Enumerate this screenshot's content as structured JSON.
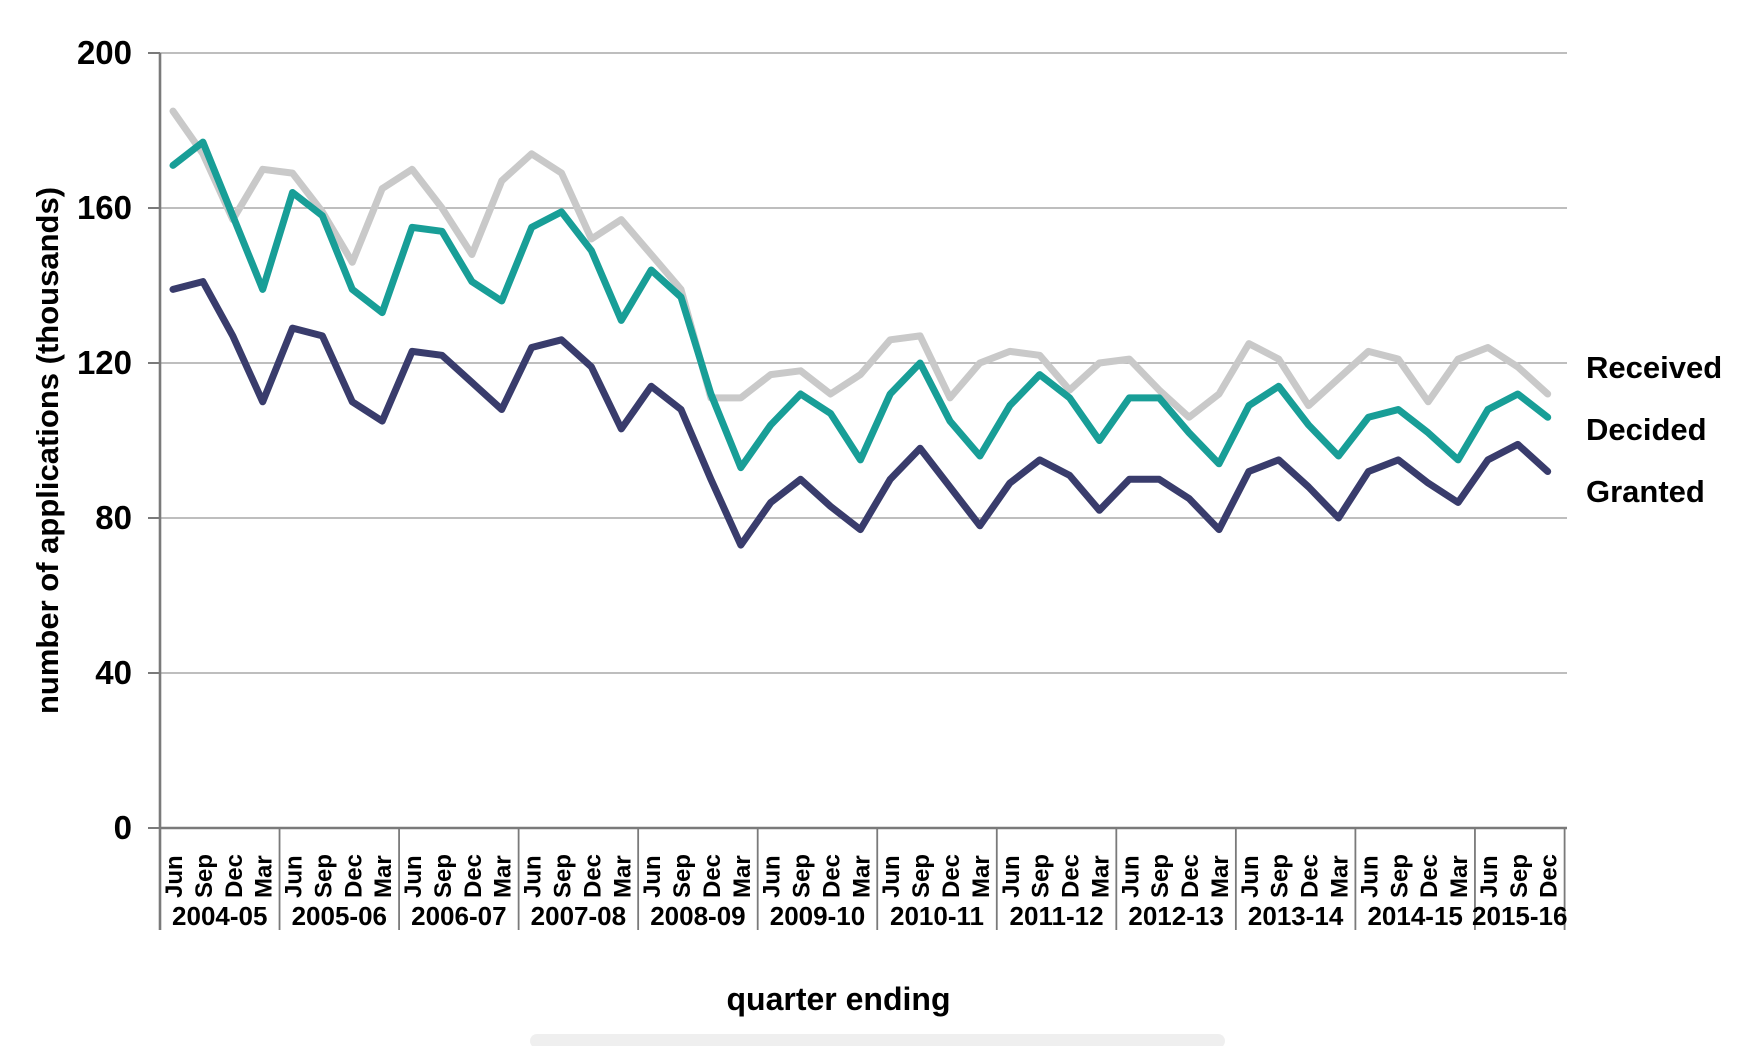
{
  "chart_data": {
    "type": "line",
    "title": "",
    "xlabel": "quarter ending",
    "ylabel": "number of applications (thousands)",
    "ylim": [
      0,
      200
    ],
    "yticks": [
      0,
      40,
      80,
      120,
      160,
      200
    ],
    "grid": true,
    "legend_position": "right-of-plot",
    "quarter_cycle": [
      "Jun",
      "Sep",
      "Dec",
      "Mar"
    ],
    "year_groups": [
      {
        "label": "2004-05",
        "quarters": [
          "Jun",
          "Sep",
          "Dec",
          "Mar"
        ]
      },
      {
        "label": "2005-06",
        "quarters": [
          "Jun",
          "Sep",
          "Dec",
          "Mar"
        ]
      },
      {
        "label": "2006-07",
        "quarters": [
          "Jun",
          "Sep",
          "Dec",
          "Mar"
        ]
      },
      {
        "label": "2007-08",
        "quarters": [
          "Jun",
          "Sep",
          "Dec",
          "Mar"
        ]
      },
      {
        "label": "2008-09",
        "quarters": [
          "Jun",
          "Sep",
          "Dec",
          "Mar"
        ]
      },
      {
        "label": "2009-10",
        "quarters": [
          "Jun",
          "Sep",
          "Dec",
          "Mar"
        ]
      },
      {
        "label": "2010-11",
        "quarters": [
          "Jun",
          "Sep",
          "Dec",
          "Mar"
        ]
      },
      {
        "label": "2011-12",
        "quarters": [
          "Jun",
          "Sep",
          "Dec",
          "Mar"
        ]
      },
      {
        "label": "2012-13",
        "quarters": [
          "Jun",
          "Sep",
          "Dec",
          "Mar"
        ]
      },
      {
        "label": "2013-14",
        "quarters": [
          "Jun",
          "Sep",
          "Dec",
          "Mar"
        ]
      },
      {
        "label": "2014-15",
        "quarters": [
          "Jun",
          "Sep",
          "Dec",
          "Mar"
        ]
      },
      {
        "label": "2015-16",
        "quarters": [
          "Jun",
          "Sep",
          "Dec"
        ]
      }
    ],
    "series": [
      {
        "name": "Received",
        "color": "#c9c9c9",
        "values": [
          185,
          174,
          157,
          170,
          169,
          159,
          146,
          165,
          170,
          160,
          148,
          167,
          174,
          169,
          152,
          157,
          148,
          139,
          111,
          111,
          117,
          118,
          112,
          117,
          126,
          127,
          111,
          120,
          123,
          122,
          113,
          120,
          121,
          113,
          106,
          112,
          125,
          121,
          109,
          116,
          123,
          121,
          110,
          121,
          124,
          119,
          112
        ]
      },
      {
        "name": "Decided",
        "color": "#189e97",
        "values": [
          171,
          177,
          158,
          139,
          164,
          158,
          139,
          133,
          155,
          154,
          141,
          136,
          155,
          159,
          149,
          131,
          144,
          137,
          112,
          93,
          104,
          112,
          107,
          95,
          112,
          120,
          105,
          96,
          109,
          117,
          111,
          100,
          111,
          111,
          102,
          94,
          109,
          114,
          104,
          96,
          106,
          108,
          102,
          95,
          108,
          112,
          106
        ]
      },
      {
        "name": "Granted",
        "color": "#393c6c",
        "values": [
          139,
          141,
          127,
          110,
          129,
          127,
          110,
          105,
          123,
          122,
          115,
          108,
          124,
          126,
          119,
          103,
          114,
          108,
          90,
          73,
          84,
          90,
          83,
          77,
          90,
          98,
          88,
          78,
          89,
          95,
          91,
          82,
          90,
          90,
          85,
          77,
          92,
          95,
          88,
          80,
          92,
          95,
          89,
          84,
          95,
          99,
          92
        ]
      }
    ],
    "axis_colors": {
      "gridline": "#a9a9a9",
      "axis_line": "#7a7a7a",
      "text": "#000000"
    },
    "legend_labels": [
      "Received",
      "Decided",
      "Granted"
    ]
  }
}
